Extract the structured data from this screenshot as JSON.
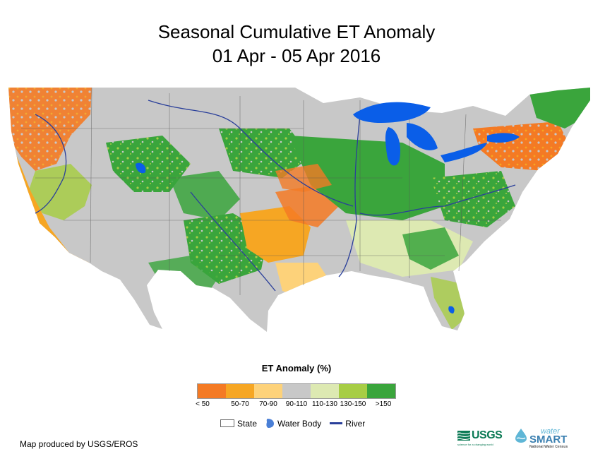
{
  "title": {
    "line1": "Seasonal Cumulative ET Anomaly",
    "line2": "01 Apr - 05 Apr 2016"
  },
  "legend": {
    "title": "ET Anomaly (%)",
    "classes": [
      {
        "label": "< 50",
        "color": "#f47a24"
      },
      {
        "label": "50-70",
        "color": "#f6a623"
      },
      {
        "label": "70-90",
        "color": "#fdd27a"
      },
      {
        "label": "90-110",
        "color": "#c8c8c8"
      },
      {
        "label": "110-130",
        "color": "#dde9b2"
      },
      {
        "label": "130-150",
        "color": "#a7cd45"
      },
      {
        "label": ">150",
        "color": "#3aa53c"
      }
    ],
    "keys": {
      "state": "State",
      "water_body": "Water Body",
      "river": "River"
    }
  },
  "colors": {
    "water": "#0a5ee8",
    "river": "#2a3f9a",
    "state_line": "#555555"
  },
  "credit": "Map produced by USGS/EROS",
  "logos": {
    "usgs": "USGS",
    "usgs_tagline": "science for a changing world",
    "ws_water": "water",
    "ws_smart": "SMART",
    "ws_sub": "National Water Census"
  }
}
